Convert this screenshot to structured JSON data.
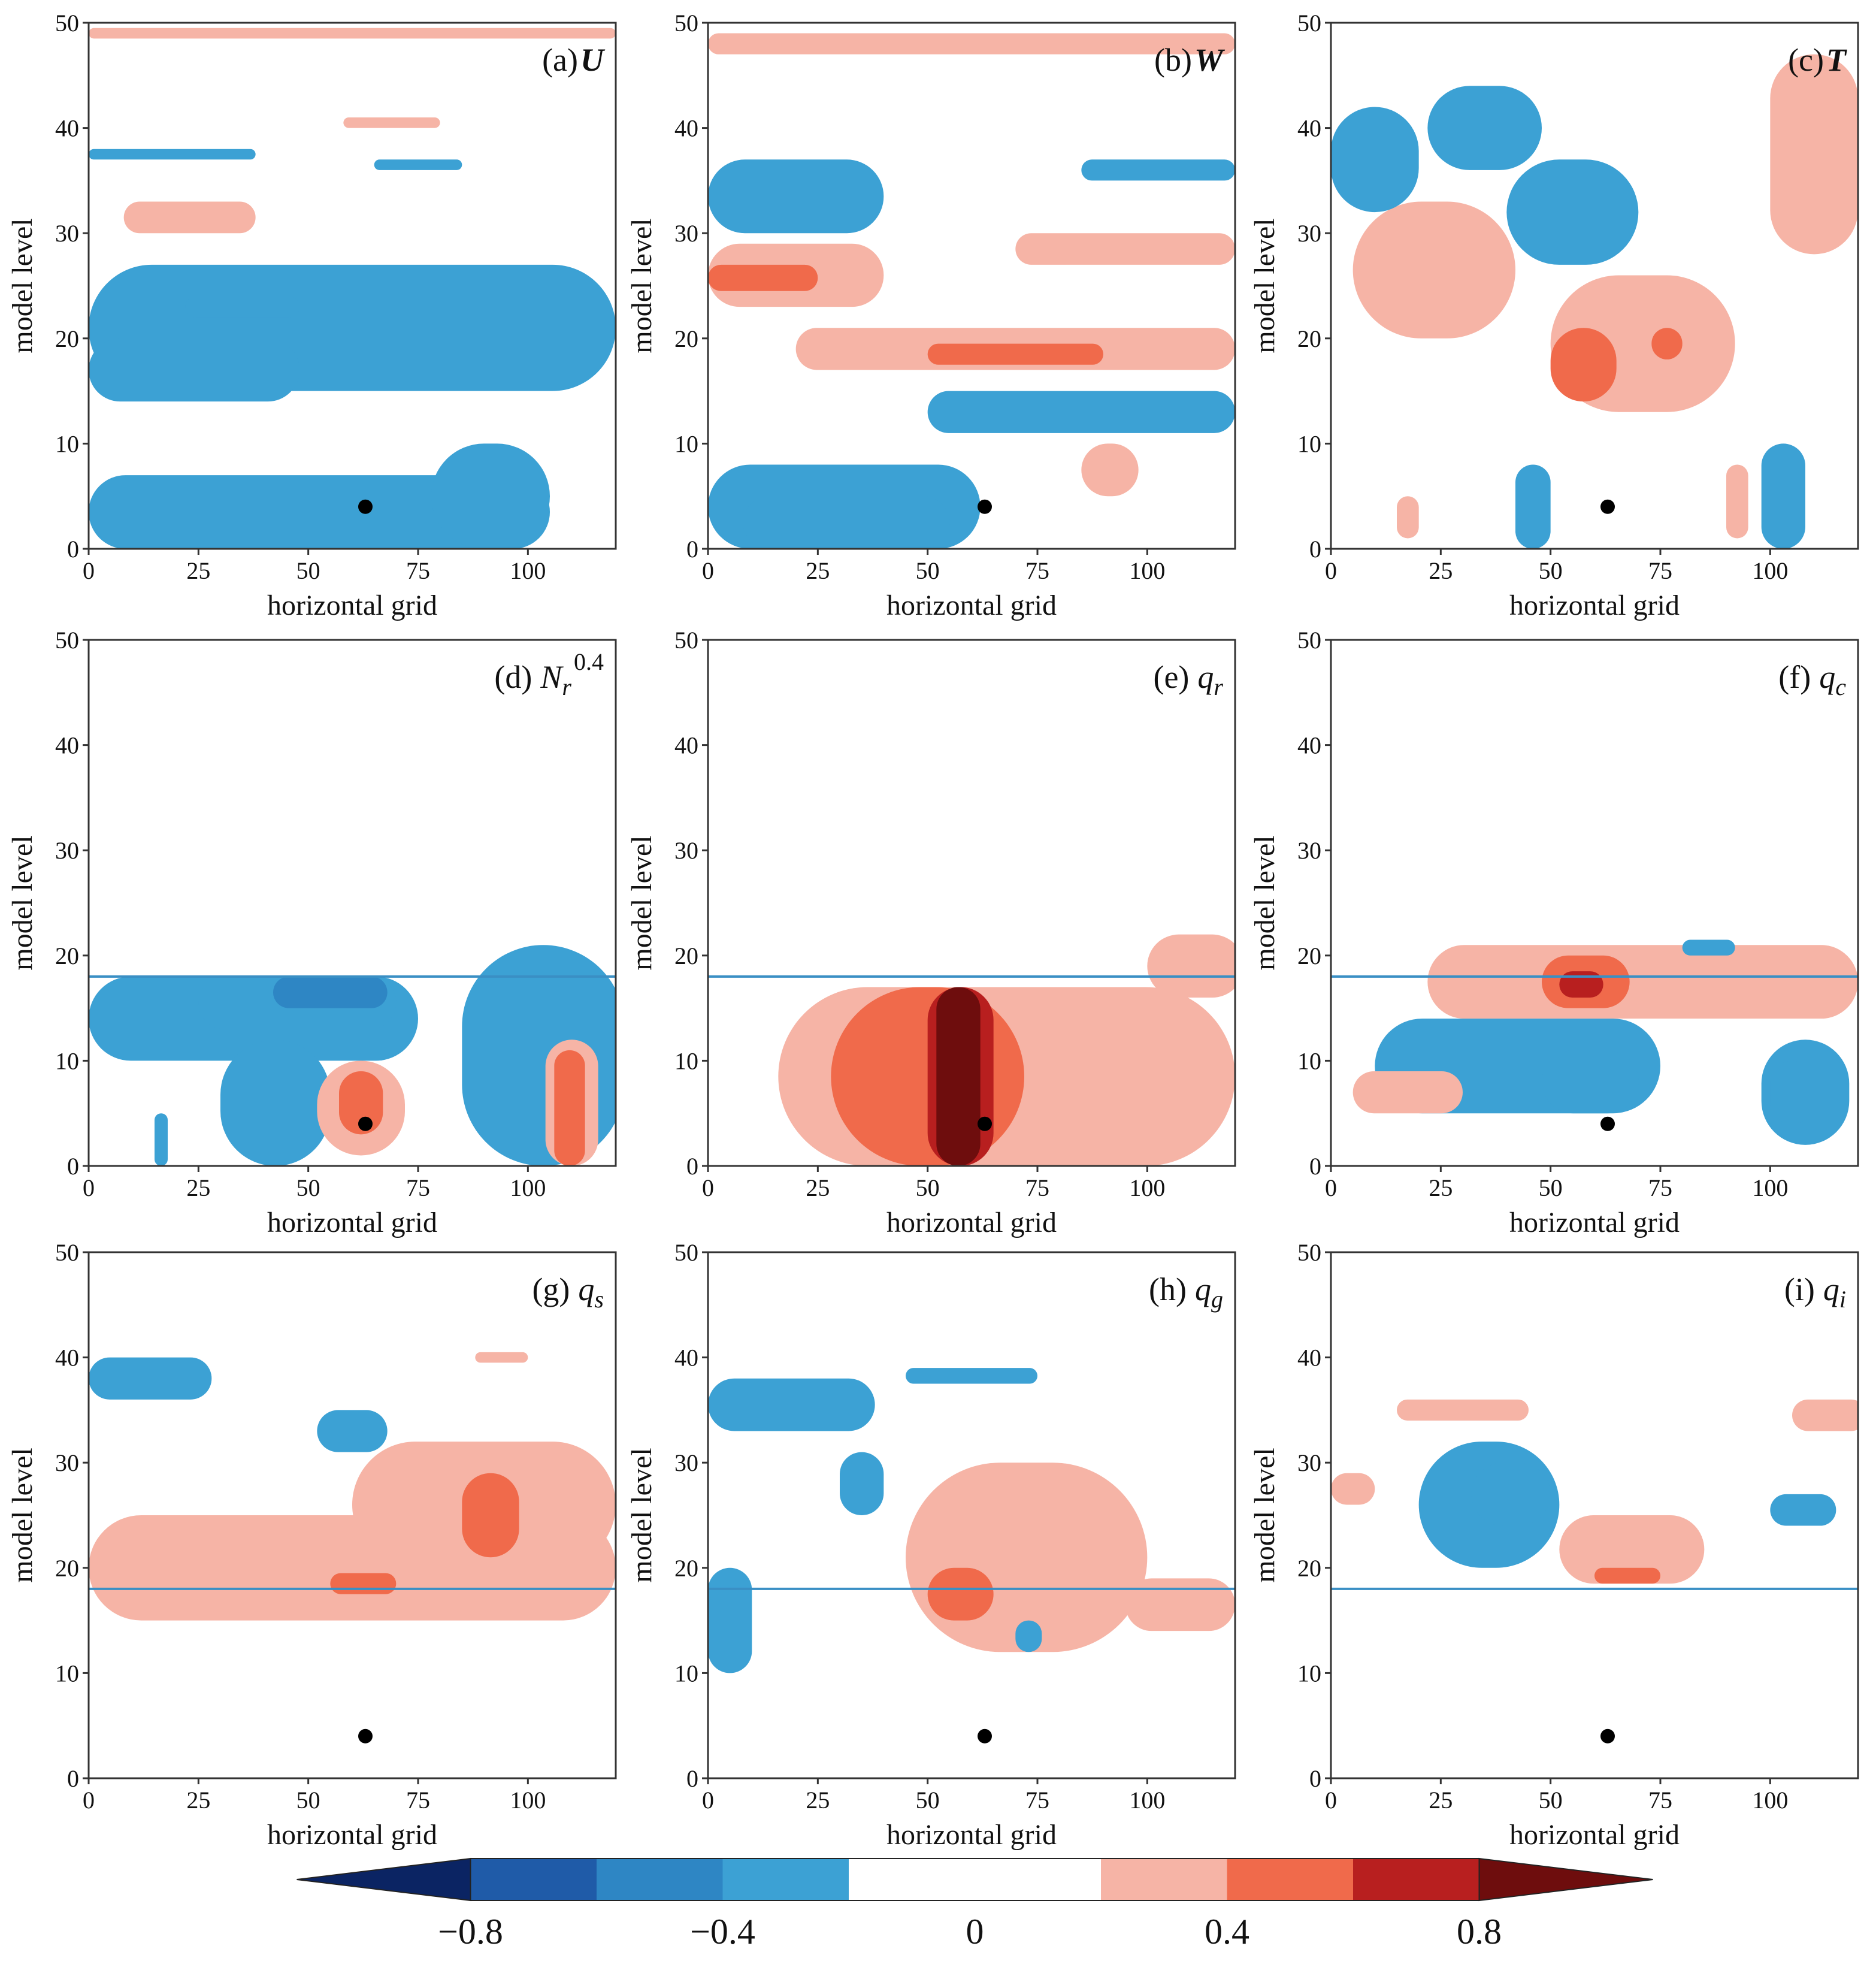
{
  "chart_data": {
    "type": "contour",
    "xlabel": "horizontal grid",
    "ylabel": "model level",
    "xlim": [
      0,
      120
    ],
    "ylim": [
      0,
      50
    ],
    "x_ticks": [
      "0",
      "25",
      "50",
      "75",
      "100"
    ],
    "x_tick_values": [
      0,
      25,
      50,
      75,
      100
    ],
    "y_ticks": [
      "0",
      "10",
      "20",
      "30",
      "40",
      "50"
    ],
    "y_tick_values": [
      0,
      10,
      20,
      30,
      40,
      50
    ],
    "observation_point": {
      "x": 63,
      "level": 4
    },
    "colorbar": {
      "levels": [
        -1.0,
        -0.8,
        -0.6,
        -0.4,
        -0.2,
        0.2,
        0.4,
        0.6,
        0.8,
        1.0
      ],
      "colors": [
        "#0b2463",
        "#1f5ba8",
        "#2e86c4",
        "#3ca1d4",
        "#ffffff",
        "#f6b4a6",
        "#f06a4b",
        "#b81f1f",
        "#6e0d0d"
      ],
      "tick_labels": [
        "−0.8",
        "−0.4",
        "0",
        "0.4",
        "0.8"
      ],
      "tick_values": [
        -0.8,
        -0.4,
        0,
        0.4,
        0.8
      ],
      "extend": "both"
    },
    "panels": [
      {
        "label": "(a)",
        "var": "U",
        "bold_italic": true,
        "sub": "",
        "sup": "",
        "hline": null,
        "blobs": [
          {
            "v": -0.3,
            "x": [
              0,
              120
            ],
            "y": [
              15,
              27
            ]
          },
          {
            "v": -0.3,
            "x": [
              0,
              48
            ],
            "y": [
              14,
              20
            ]
          },
          {
            "v": -0.4,
            "x": [
              22,
              48
            ],
            "y": [
              22,
              24
            ]
          },
          {
            "v": -0.3,
            "x": [
              0,
              105
            ],
            "y": [
              0,
              7
            ]
          },
          {
            "v": -0.3,
            "x": [
              78,
              105
            ],
            "y": [
              0,
              10
            ]
          },
          {
            "v": -0.3,
            "x": [
              0,
              38
            ],
            "y": [
              37,
              38
            ]
          },
          {
            "v": -0.3,
            "x": [
              65,
              85
            ],
            "y": [
              36,
              37
            ]
          },
          {
            "v": 0.3,
            "x": [
              8,
              38
            ],
            "y": [
              30,
              33
            ]
          },
          {
            "v": 0.3,
            "x": [
              58,
              80
            ],
            "y": [
              40,
              41
            ]
          },
          {
            "v": 0.3,
            "x": [
              0,
              120
            ],
            "y": [
              48.5,
              49.5
            ]
          }
        ]
      },
      {
        "label": "(b)",
        "var": "W",
        "bold_italic": true,
        "sub": "",
        "sup": "",
        "hline": null,
        "blobs": [
          {
            "v": -0.3,
            "x": [
              0,
              40
            ],
            "y": [
              30,
              37
            ]
          },
          {
            "v": 0.3,
            "x": [
              0,
              40
            ],
            "y": [
              23,
              29
            ]
          },
          {
            "v": 0.5,
            "x": [
              0,
              25
            ],
            "y": [
              24.5,
              27
            ]
          },
          {
            "v": 0.3,
            "x": [
              20,
              120
            ],
            "y": [
              17,
              21
            ]
          },
          {
            "v": 0.5,
            "x": [
              50,
              90
            ],
            "y": [
              17.5,
              19.5
            ]
          },
          {
            "v": -0.3,
            "x": [
              0,
              62
            ],
            "y": [
              0,
              8
            ]
          },
          {
            "v": -0.4,
            "x": [
              8,
              55
            ],
            "y": [
              0,
              5
            ]
          },
          {
            "v": -0.3,
            "x": [
              50,
              120
            ],
            "y": [
              11,
              15
            ]
          },
          {
            "v": -0.3,
            "x": [
              85,
              120
            ],
            "y": [
              35,
              37
            ]
          },
          {
            "v": 0.3,
            "x": [
              70,
              120
            ],
            "y": [
              27,
              30
            ]
          },
          {
            "v": 0.3,
            "x": [
              85,
              98
            ],
            "y": [
              5,
              10
            ]
          },
          {
            "v": 0.3,
            "x": [
              0,
              120
            ],
            "y": [
              47,
              49
            ]
          }
        ]
      },
      {
        "label": "(c)",
        "var": "T",
        "bold_italic": true,
        "sub": "",
        "sup": "",
        "hline": null,
        "blobs": [
          {
            "v": 0.3,
            "x": [
              50,
              92
            ],
            "y": [
              13,
              26
            ]
          },
          {
            "v": 0.5,
            "x": [
              50,
              65
            ],
            "y": [
              14,
              21
            ]
          },
          {
            "v": 0.5,
            "x": [
              73,
              80
            ],
            "y": [
              18,
              21
            ]
          },
          {
            "v": 0.3,
            "x": [
              5,
              42
            ],
            "y": [
              20,
              33
            ]
          },
          {
            "v": -0.3,
            "x": [
              0,
              20
            ],
            "y": [
              32,
              42
            ]
          },
          {
            "v": -0.3,
            "x": [
              22,
              48
            ],
            "y": [
              36,
              44
            ]
          },
          {
            "v": -0.3,
            "x": [
              40,
              70
            ],
            "y": [
              27,
              37
            ]
          },
          {
            "v": -0.3,
            "x": [
              42,
              50
            ],
            "y": [
              0,
              8
            ]
          },
          {
            "v": -0.3,
            "x": [
              98,
              108
            ],
            "y": [
              0,
              10
            ]
          },
          {
            "v": 0.3,
            "x": [
              100,
              120
            ],
            "y": [
              28,
              47
            ]
          },
          {
            "v": 0.3,
            "x": [
              15,
              20
            ],
            "y": [
              1,
              5
            ]
          },
          {
            "v": 0.3,
            "x": [
              90,
              95
            ],
            "y": [
              1,
              8
            ]
          }
        ]
      },
      {
        "label": "(d)",
        "var": "N",
        "bold_italic": false,
        "sub": "r",
        "sup": "0.4",
        "hline": 18,
        "blobs": [
          {
            "v": -0.3,
            "x": [
              0,
              75
            ],
            "y": [
              10,
              18
            ]
          },
          {
            "v": -0.4,
            "x": [
              25,
              70
            ],
            "y": [
              13,
              18
            ]
          },
          {
            "v": -0.6,
            "x": [
              42,
              68
            ],
            "y": [
              15,
              18
            ]
          },
          {
            "v": -0.3,
            "x": [
              30,
              55
            ],
            "y": [
              0,
              12
            ]
          },
          {
            "v": -0.3,
            "x": [
              85,
              122
            ],
            "y": [
              0,
              21
            ]
          },
          {
            "v": -0.3,
            "x": [
              15,
              18
            ],
            "y": [
              0,
              5
            ]
          },
          {
            "v": 0.3,
            "x": [
              52,
              72
            ],
            "y": [
              1,
              10
            ]
          },
          {
            "v": 0.5,
            "x": [
              57,
              67
            ],
            "y": [
              3,
              9
            ]
          },
          {
            "v": 0.3,
            "x": [
              104,
              116
            ],
            "y": [
              0,
              12
            ]
          },
          {
            "v": 0.5,
            "x": [
              106,
              113
            ],
            "y": [
              0,
              11
            ]
          }
        ]
      },
      {
        "label": "(e)",
        "var": "q",
        "bold_italic": false,
        "sub": "r",
        "sup": "",
        "hline": 18,
        "blobs": [
          {
            "v": 0.3,
            "x": [
              16,
              120
            ],
            "y": [
              0,
              17
            ]
          },
          {
            "v": 0.5,
            "x": [
              28,
              72
            ],
            "y": [
              0,
              17
            ]
          },
          {
            "v": 0.7,
            "x": [
              50,
              65
            ],
            "y": [
              0,
              17
            ]
          },
          {
            "v": 0.9,
            "x": [
              52,
              62
            ],
            "y": [
              0,
              17
            ]
          },
          {
            "v": 0.3,
            "x": [
              100,
              122
            ],
            "y": [
              16,
              22
            ]
          }
        ]
      },
      {
        "label": "(f)",
        "var": "q",
        "bold_italic": false,
        "sub": "c",
        "sup": "",
        "hline": 18,
        "blobs": [
          {
            "v": 0.3,
            "x": [
              22,
              120
            ],
            "y": [
              14,
              21
            ]
          },
          {
            "v": 0.5,
            "x": [
              48,
              68
            ],
            "y": [
              15,
              20
            ]
          },
          {
            "v": 0.7,
            "x": [
              52,
              62
            ],
            "y": [
              16,
              18.5
            ]
          },
          {
            "v": -0.3,
            "x": [
              10,
              75
            ],
            "y": [
              5,
              14
            ]
          },
          {
            "v": -0.4,
            "x": [
              48,
              70
            ],
            "y": [
              5,
              11
            ]
          },
          {
            "v": -0.3,
            "x": [
              98,
              118
            ],
            "y": [
              2,
              12
            ]
          },
          {
            "v": -0.4,
            "x": [
              100,
              110
            ],
            "y": [
              4,
              10
            ]
          },
          {
            "v": -0.3,
            "x": [
              80,
              92
            ],
            "y": [
              20,
              21.5
            ]
          },
          {
            "v": 0.3,
            "x": [
              5,
              30
            ],
            "y": [
              5,
              9
            ]
          }
        ]
      },
      {
        "label": "(g)",
        "var": "q",
        "bold_italic": false,
        "sub": "s",
        "sup": "",
        "hline": 18,
        "blobs": [
          {
            "v": 0.3,
            "x": [
              0,
              120
            ],
            "y": [
              15,
              25
            ]
          },
          {
            "v": 0.3,
            "x": [
              60,
              120
            ],
            "y": [
              20,
              32
            ]
          },
          {
            "v": 0.5,
            "x": [
              85,
              98
            ],
            "y": [
              21,
              29
            ]
          },
          {
            "v": 0.5,
            "x": [
              55,
              70
            ],
            "y": [
              17.5,
              19.5
            ]
          },
          {
            "v": -0.3,
            "x": [
              0,
              28
            ],
            "y": [
              36,
              40
            ]
          },
          {
            "v": -0.3,
            "x": [
              52,
              68
            ],
            "y": [
              31,
              35
            ]
          },
          {
            "v": 0.3,
            "x": [
              88,
              100
            ],
            "y": [
              39.5,
              40.5
            ]
          }
        ]
      },
      {
        "label": "(h)",
        "var": "q",
        "bold_italic": false,
        "sub": "g",
        "sup": "",
        "hline": 18,
        "blobs": [
          {
            "v": -0.3,
            "x": [
              0,
              38
            ],
            "y": [
              33,
              38
            ]
          },
          {
            "v": -0.3,
            "x": [
              45,
              75
            ],
            "y": [
              37.5,
              39
            ]
          },
          {
            "v": -0.3,
            "x": [
              30,
              40
            ],
            "y": [
              25,
              31
            ]
          },
          {
            "v": -0.3,
            "x": [
              0,
              10
            ],
            "y": [
              10,
              20
            ]
          },
          {
            "v": 0.3,
            "x": [
              45,
              100
            ],
            "y": [
              12,
              30
            ]
          },
          {
            "v": 0.5,
            "x": [
              50,
              65
            ],
            "y": [
              15,
              20
            ]
          },
          {
            "v": 0.3,
            "x": [
              95,
              120
            ],
            "y": [
              14,
              19
            ]
          },
          {
            "v": -0.3,
            "x": [
              70,
              76
            ],
            "y": [
              12,
              15
            ]
          }
        ]
      },
      {
        "label": "(i)",
        "var": "q",
        "bold_italic": false,
        "sub": "i",
        "sup": "",
        "hline": 18,
        "blobs": [
          {
            "v": -0.3,
            "x": [
              20,
              52
            ],
            "y": [
              20,
              32
            ]
          },
          {
            "v": -0.4,
            "x": [
              32,
              50
            ],
            "y": [
              24,
              30
            ]
          },
          {
            "v": 0.3,
            "x": [
              52,
              85
            ],
            "y": [
              18.5,
              25
            ]
          },
          {
            "v": 0.5,
            "x": [
              60,
              75
            ],
            "y": [
              18.5,
              20
            ]
          },
          {
            "v": 0.3,
            "x": [
              15,
              45
            ],
            "y": [
              34,
              36
            ]
          },
          {
            "v": -0.3,
            "x": [
              100,
              115
            ],
            "y": [
              24,
              27
            ]
          },
          {
            "v": 0.3,
            "x": [
              105,
              122
            ],
            "y": [
              33,
              36
            ]
          },
          {
            "v": 0.3,
            "x": [
              0,
              10
            ],
            "y": [
              26,
              29
            ]
          }
        ]
      }
    ]
  }
}
